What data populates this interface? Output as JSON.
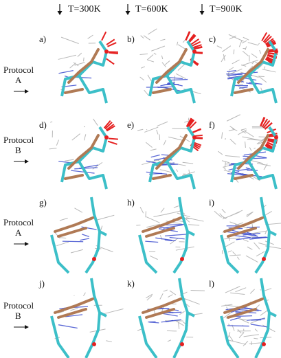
{
  "column_headers": [
    "T=300K",
    "T=600K",
    "T=900K"
  ],
  "rows": [
    {
      "protocol": "Protocol",
      "label": "A",
      "panels": [
        "a)",
        "b)",
        "c)"
      ]
    },
    {
      "protocol": "Protocol",
      "label": "B",
      "panels": [
        "d)",
        "e)",
        "f)"
      ]
    },
    {
      "protocol": "Protocol",
      "label": "A",
      "panels": [
        "g)",
        "h)",
        "i)"
      ]
    },
    {
      "protocol": "Protocol",
      "label": "B",
      "panels": [
        "j)",
        "k)",
        "l)"
      ]
    }
  ]
}
